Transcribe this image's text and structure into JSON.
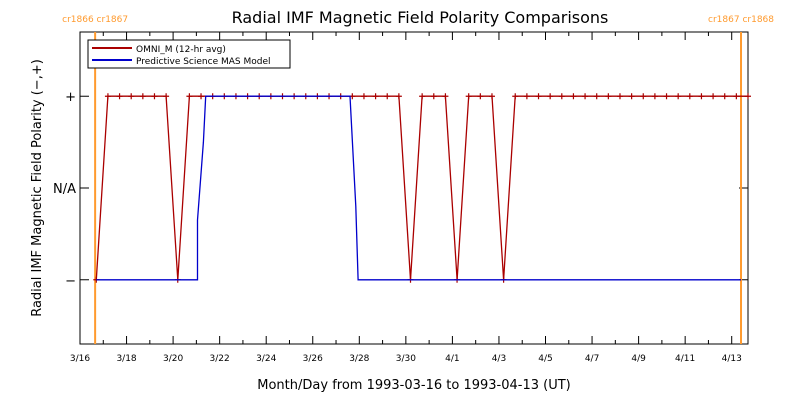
{
  "chart_data": {
    "type": "line",
    "title": "Radial IMF Magnetic Field Polarity Comparisons",
    "xlabel": "Month/Day from 1993-03-16 to 1993-04-13 (UT)",
    "ylabel": "Radial IMF Magnetic Field Polarity (−,+)",
    "x_range_days": [
      0,
      28.7
    ],
    "y_range": [
      -1.7,
      1.7
    ],
    "x_ticks": [
      {
        "day": 0,
        "label": "3/16"
      },
      {
        "day": 2,
        "label": "3/18"
      },
      {
        "day": 4,
        "label": "3/20"
      },
      {
        "day": 6,
        "label": "3/22"
      },
      {
        "day": 8,
        "label": "3/24"
      },
      {
        "day": 10,
        "label": "3/26"
      },
      {
        "day": 12,
        "label": "3/28"
      },
      {
        "day": 14,
        "label": "3/30"
      },
      {
        "day": 16,
        "label": "4/1"
      },
      {
        "day": 18,
        "label": "4/3"
      },
      {
        "day": 20,
        "label": "4/5"
      },
      {
        "day": 22,
        "label": "4/7"
      },
      {
        "day": 24,
        "label": "4/9"
      },
      {
        "day": 26,
        "label": "4/11"
      },
      {
        "day": 28,
        "label": "4/13"
      }
    ],
    "y_ticks": [
      {
        "value": 1,
        "label": "+"
      },
      {
        "value": 0,
        "label": "N/A"
      },
      {
        "value": -1,
        "label": "−"
      }
    ],
    "legend": {
      "placement": "top-left",
      "entries": [
        "OMNI_M (12-hr avg)",
        "Predictive Science MAS Model"
      ]
    },
    "carrington_markers": [
      {
        "day": 0.65,
        "label": "cr1866 cr1867",
        "color": "#ff9a2e"
      },
      {
        "day": 28.4,
        "label": "cr1867 cr1868",
        "color": "#ff9a2e"
      }
    ],
    "series": [
      {
        "name": "OMNI_M (12-hr avg)",
        "color": "#aa0000",
        "marker": "+",
        "points": [
          [
            0.7,
            -1
          ],
          [
            1.2,
            1
          ],
          [
            1.7,
            1
          ],
          [
            2.2,
            1
          ],
          [
            2.7,
            1
          ],
          [
            3.2,
            1
          ],
          [
            3.7,
            1
          ],
          [
            4.2,
            -1
          ],
          [
            4.7,
            1
          ],
          [
            5.2,
            1
          ],
          [
            5.7,
            1
          ],
          [
            6.2,
            1
          ],
          [
            6.7,
            1
          ],
          [
            7.2,
            1
          ],
          [
            7.7,
            1
          ],
          [
            8.2,
            1
          ],
          [
            8.7,
            1
          ],
          [
            9.2,
            1
          ],
          [
            9.7,
            1
          ],
          [
            10.2,
            1
          ],
          [
            10.7,
            1
          ],
          [
            11.2,
            1
          ],
          [
            11.7,
            1
          ],
          [
            12.2,
            1
          ],
          [
            12.7,
            1
          ],
          [
            13.2,
            1
          ],
          [
            13.7,
            1
          ],
          [
            14.2,
            -1
          ],
          [
            14.7,
            1
          ],
          [
            15.2,
            1
          ],
          [
            15.7,
            1
          ],
          [
            16.2,
            -1
          ],
          [
            16.7,
            1
          ],
          [
            17.2,
            1
          ],
          [
            17.7,
            1
          ],
          [
            18.2,
            -1
          ],
          [
            18.7,
            1
          ],
          [
            19.2,
            1
          ],
          [
            19.7,
            1
          ],
          [
            20.2,
            1
          ],
          [
            20.7,
            1
          ],
          [
            21.2,
            1
          ],
          [
            21.7,
            1
          ],
          [
            22.2,
            1
          ],
          [
            22.7,
            1
          ],
          [
            23.2,
            1
          ],
          [
            23.7,
            1
          ],
          [
            24.2,
            1
          ],
          [
            24.7,
            1
          ],
          [
            25.2,
            1
          ],
          [
            25.7,
            1
          ],
          [
            26.2,
            1
          ],
          [
            26.7,
            1
          ],
          [
            27.2,
            1
          ],
          [
            27.7,
            1
          ],
          [
            28.2,
            1
          ],
          [
            28.7,
            1
          ]
        ]
      },
      {
        "name": "Predictive Science MAS Model",
        "color": "#0000cc",
        "marker": "",
        "points": [
          [
            0.7,
            -1
          ],
          [
            5.05,
            -1
          ],
          [
            5.05,
            -0.35
          ],
          [
            5.3,
            0.5
          ],
          [
            5.4,
            1
          ],
          [
            11.6,
            1
          ],
          [
            11.85,
            -0.2
          ],
          [
            11.95,
            -1
          ],
          [
            28.4,
            -1
          ]
        ]
      }
    ]
  }
}
